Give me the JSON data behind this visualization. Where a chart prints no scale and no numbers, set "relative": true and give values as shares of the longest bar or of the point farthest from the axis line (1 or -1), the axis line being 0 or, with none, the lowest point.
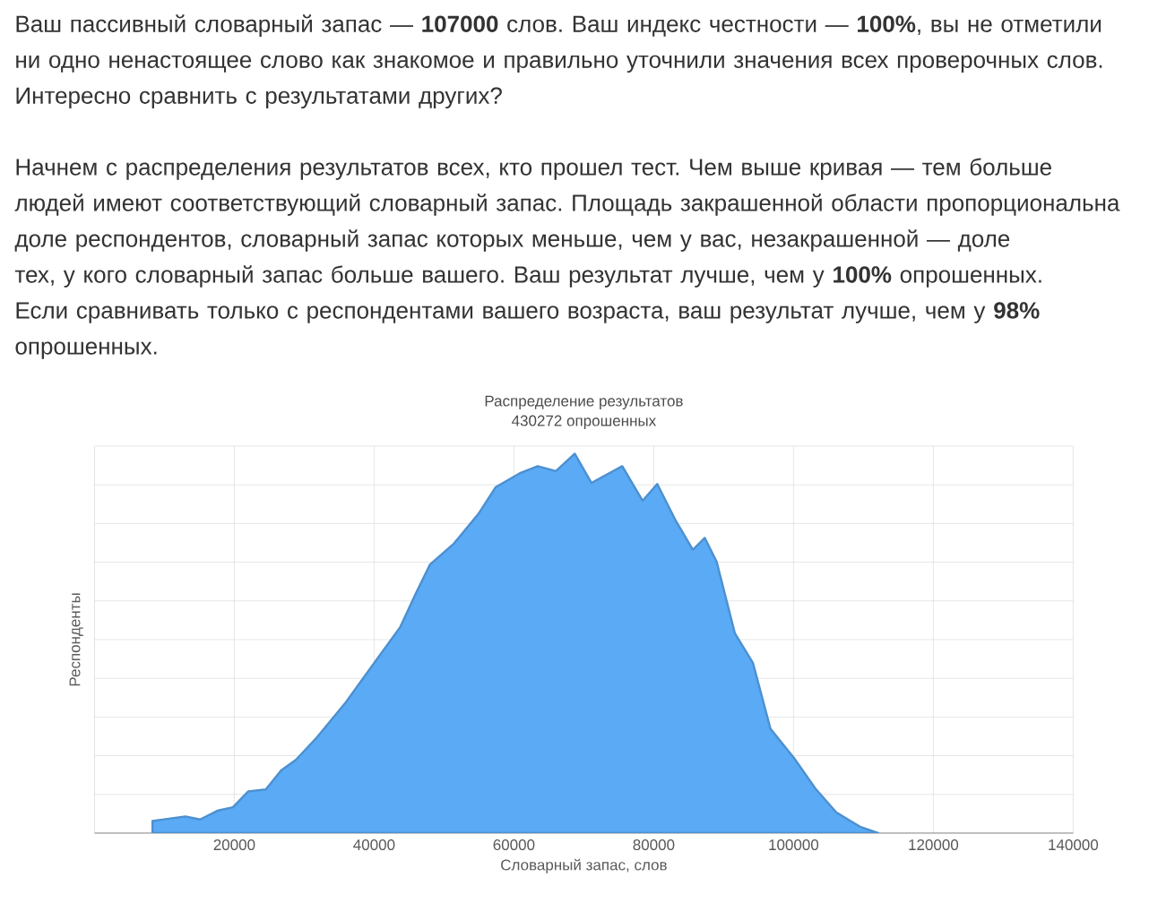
{
  "chart_data": {
    "type": "area",
    "title": "Распределение результатов",
    "subtitle": "430272 опрошенных",
    "xlabel": "Словарный запас, слов",
    "ylabel": "Респонденты",
    "annotations": [
      "Ваш пассивный словарный запас — **107000** слов. Ваш индекс честности — **100%**, вы не отметили ни одно ненастоящее слово как знакомое и правильно уточнили значения всех проверочных слов. Интересно сравнить с результатами других?",
      "Начнем с распределения результатов всех, кто прошел тест. Чем выше кривая — тем больше людей имеют соответствующий словарный запас. Площадь закрашенной области пропорциональна доле респондентов, словарный запас которых меньше, чем у вас, незакрашенной — доле тех, у кого словарный запас больше вашего. Ваш результат лучше, чем у **100%** опрошенных. Если сравнивать только с респондентами вашего возраста, ваш результат лучше, чем у **98%** опрошенных."
    ],
    "relative": true,
    "x": [
      8300,
      13000,
      15100,
      17700,
      19800,
      22000,
      24500,
      26700,
      28800,
      31800,
      36000,
      40300,
      43700,
      45900,
      48000,
      51400,
      54900,
      57400,
      60800,
      63400,
      66000,
      68700,
      71100,
      75500,
      78400,
      80500,
      83100,
      85600,
      87300,
      89000,
      91600,
      94200,
      96700,
      100100,
      103100,
      106100,
      109600,
      112100
    ],
    "values": [
      0.032,
      0.044,
      0.036,
      0.06,
      0.068,
      0.11,
      0.115,
      0.165,
      0.193,
      0.252,
      0.346,
      0.456,
      0.542,
      0.629,
      0.708,
      0.763,
      0.841,
      0.912,
      0.948,
      0.967,
      0.954,
      1,
      0.923,
      0.967,
      0.876,
      0.92,
      0.825,
      0.747,
      0.778,
      0.715,
      0.527,
      0.448,
      0.275,
      0.197,
      0.118,
      0.055,
      0.016,
      0
    ],
    "color": "#5aaaf5",
    "xlim": [
      0,
      140000
    ],
    "xticks": [
      20000,
      40000,
      60000,
      80000,
      100000,
      120000,
      140000
    ],
    "grid": true,
    "tick_labels": "x"
  }
}
